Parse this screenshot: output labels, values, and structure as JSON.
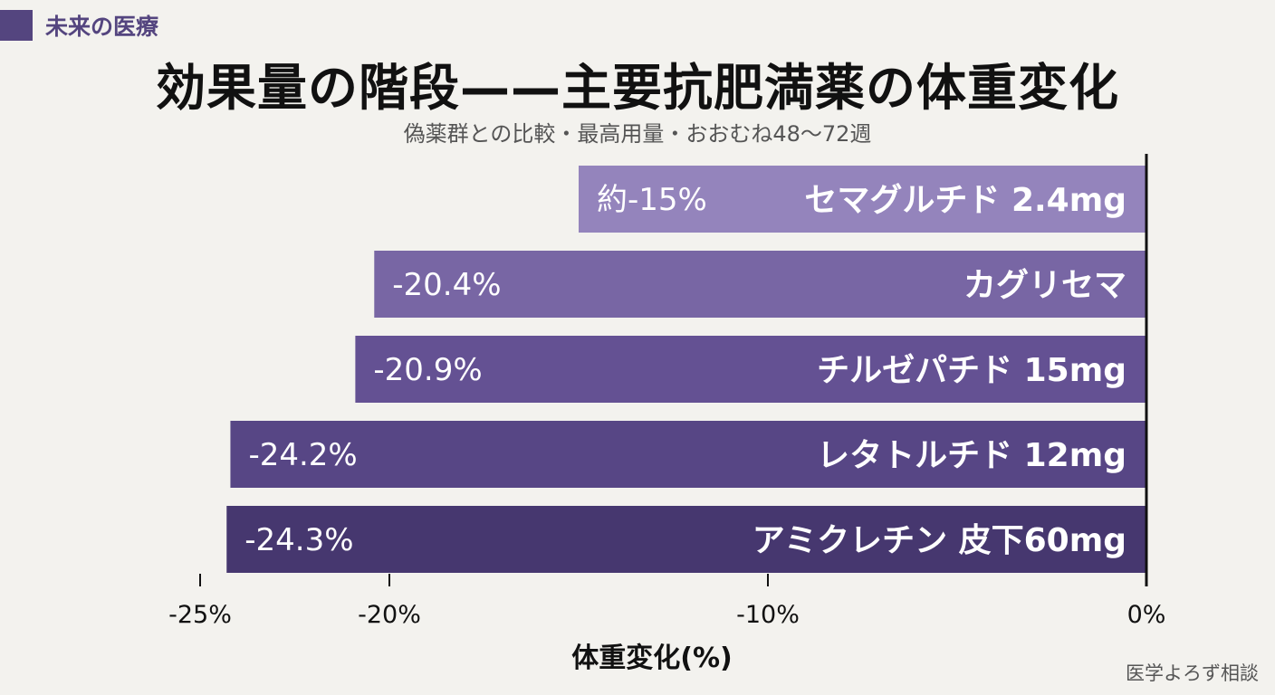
{
  "header": {
    "brand": "未来の医療",
    "title": "効果量の階段——主要抗肥満薬の体重変化",
    "subtitle": "偽薬群との比較・最高用量・おおむね48〜72週"
  },
  "footer": {
    "credit": "医学よろず相談"
  },
  "colors": {
    "bars": [
      "#9484bc",
      "#7866a4",
      "#645193",
      "#574685",
      "#46376f"
    ],
    "brand": "#54457f",
    "background": "#f3f2ee"
  },
  "chart_data": {
    "type": "bar",
    "orientation": "horizontal",
    "categories": [
      "セマグルチド 2.4mg",
      "カグリセマ",
      "チルゼパチド 15mg",
      "レタトルチド 12mg",
      "アミクレチン 皮下60mg"
    ],
    "values": [
      -15,
      -20.4,
      -20.9,
      -24.2,
      -24.3
    ],
    "value_labels": [
      "約-15%",
      "-20.4%",
      "-20.9%",
      "-24.2%",
      "-24.3%"
    ],
    "xlabel": "体重変化(%)",
    "xlim": [
      -25,
      0
    ],
    "xticks": [
      {
        "value": -25,
        "label": "-25%"
      },
      {
        "value": -20,
        "label": "-20%"
      },
      {
        "value": -10,
        "label": "-10%"
      },
      {
        "value": 0,
        "label": "0%"
      }
    ],
    "grid": false
  }
}
